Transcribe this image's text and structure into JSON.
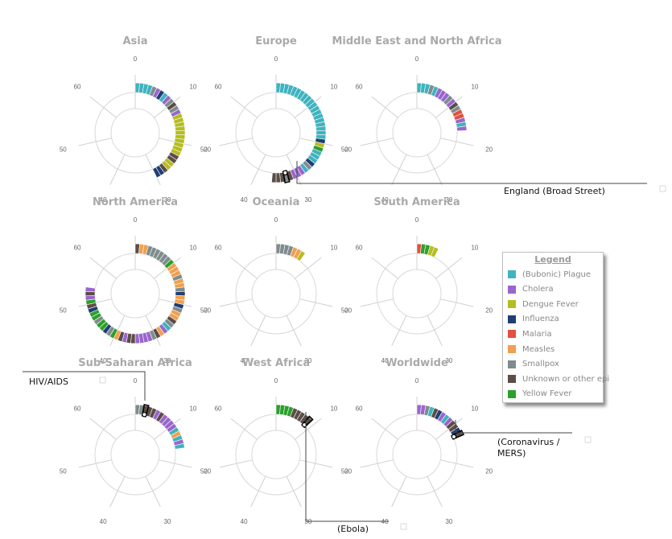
{
  "chart_data": {
    "type": "radial-stacked-segments",
    "axis": {
      "ticks": [
        0,
        10,
        20,
        30,
        40,
        50,
        60
      ],
      "max": 70
    },
    "categories": [
      {
        "key": "P",
        "name": "(Bubonic) Plague",
        "color": "#3fb3bf"
      },
      {
        "key": "C",
        "name": "Cholera",
        "color": "#9966cc"
      },
      {
        "key": "D",
        "name": "Dengue Fever",
        "color": "#b5bd21"
      },
      {
        "key": "I",
        "name": "Influenza",
        "color": "#1f3e73"
      },
      {
        "key": "M",
        "name": "Malaria",
        "color": "#e0523f"
      },
      {
        "key": "Me",
        "name": "Measles",
        "color": "#f0a050"
      },
      {
        "key": "S",
        "name": "Smallpox",
        "color": "#7f8c8d"
      },
      {
        "key": "U",
        "name": "Unknown or other epi",
        "color": "#5c4d48"
      },
      {
        "key": "Y",
        "name": "Yellow Fever",
        "color": "#2ca02c"
      }
    ],
    "panels": [
      {
        "title": "Asia",
        "segments": [
          "P",
          "P",
          "P",
          "P",
          "S",
          "C",
          "I",
          "P",
          "C",
          "S",
          "U",
          "S",
          "C",
          "D",
          "D",
          "D",
          "D",
          "D",
          "D",
          "D",
          "D",
          "D",
          "D",
          "U",
          "U",
          "D",
          "D",
          "U",
          "I",
          "I"
        ]
      },
      {
        "title": "Europe",
        "segments": [
          "P",
          "P",
          "P",
          "P",
          "P",
          "P",
          "P",
          "P",
          "P",
          "P",
          "P",
          "P",
          "P",
          "P",
          "P",
          "P",
          "P",
          "P",
          "P",
          "I",
          "D",
          "Y",
          "P",
          "P",
          "P",
          "I",
          "S",
          "P",
          "C",
          "C",
          "C",
          "U",
          "S",
          "U",
          "U",
          "U"
        ]
      },
      {
        "title": "Middle East and North Africa",
        "segments": [
          "P",
          "P",
          "P",
          "S",
          "P",
          "C",
          "C",
          "C",
          "S",
          "C",
          "U",
          "S",
          "M",
          "M",
          "C",
          "P",
          "C"
        ]
      },
      {
        "title": "North America",
        "segments": [
          "U",
          "Me",
          "Me",
          "S",
          "S",
          "S",
          "S",
          "S",
          "S",
          "Y",
          "Me",
          "Me",
          "Me",
          "S",
          "Me",
          "Me",
          "S",
          "I",
          "Me",
          "Me",
          "I",
          "S",
          "Me",
          "Me",
          "U",
          "S",
          "P",
          "C",
          "Me",
          "U",
          "S",
          "C",
          "C",
          "C",
          "C",
          "U",
          "U",
          "C",
          "U",
          "Me",
          "Y",
          "S",
          "I",
          "Y",
          "Y",
          "S",
          "Y",
          "Y",
          "I",
          "U",
          "Y",
          "C",
          "U",
          "C"
        ]
      },
      {
        "title": "Oceania",
        "segments": [
          "S",
          "S",
          "S",
          "S",
          "Me",
          "Me",
          "D"
        ]
      },
      {
        "title": "South America",
        "segments": [
          "M",
          "Y",
          "Y",
          "D",
          "D"
        ]
      },
      {
        "title": "Sub-Saharan Africa",
        "segments": [
          "S",
          "S",
          "U",
          "U",
          "U",
          "C",
          "U",
          "C",
          "C",
          "C",
          "C",
          "P",
          "Me",
          "P",
          "C",
          "P"
        ]
      },
      {
        "title": "West Africa",
        "segments": [
          "Y",
          "Y",
          "Y",
          "Y",
          "U",
          "U",
          "U",
          "U",
          "U"
        ]
      },
      {
        "title": "Worldwide",
        "segments": [
          "C",
          "C",
          "S",
          "P",
          "U",
          "I",
          "C",
          "P",
          "C",
          "U",
          "U",
          "I",
          "U"
        ]
      }
    ],
    "legend_placement": "right"
  },
  "legend": {
    "title": "Legend"
  },
  "callouts": [
    {
      "text": "England (Broad Street)"
    },
    {
      "text": "HIV/AIDS"
    },
    {
      "text": "(Coronavirus /"
    },
    {
      "text": "MERS)"
    },
    {
      "text": "(Ebola)"
    }
  ]
}
